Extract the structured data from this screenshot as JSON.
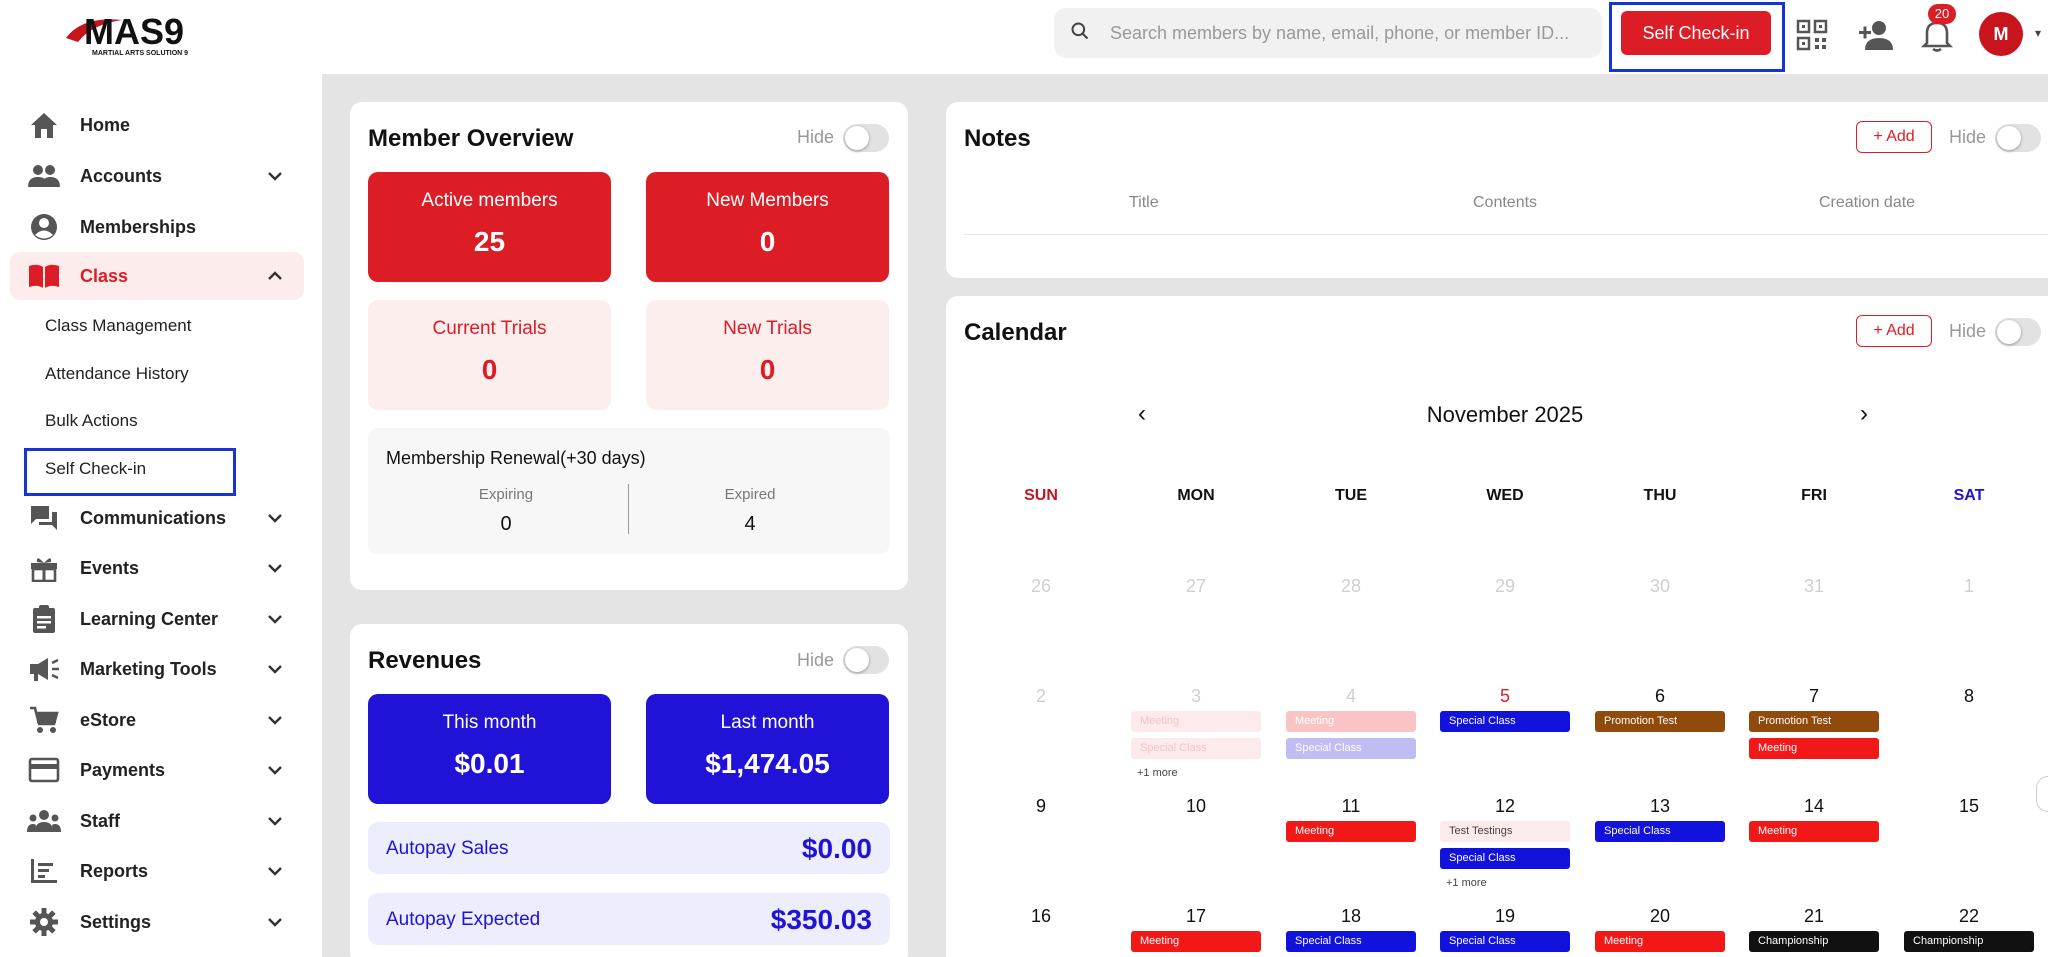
{
  "app": {
    "logo_text": "MAS9",
    "logo_sub": "MARTIAL ARTS SOLUTION 9"
  },
  "header": {
    "search_placeholder": "Search members by name, email, phone, or member ID...",
    "self_checkin_label": "Self Check-in",
    "notification_count": "20",
    "avatar_initials": "M"
  },
  "sidebar": {
    "items": [
      {
        "label": "Home",
        "icon": "home-icon"
      },
      {
        "label": "Accounts",
        "icon": "accounts-icon"
      },
      {
        "label": "Memberships",
        "icon": "user-circle-icon"
      },
      {
        "label": "Class",
        "icon": "book-icon"
      },
      {
        "label": "Communications",
        "icon": "chat-icon"
      },
      {
        "label": "Events",
        "icon": "gift-icon"
      },
      {
        "label": "Learning Center",
        "icon": "clipboard-icon"
      },
      {
        "label": "Marketing Tools",
        "icon": "megaphone-icon"
      },
      {
        "label": "eStore",
        "icon": "cart-icon"
      },
      {
        "label": "Payments",
        "icon": "credit-card-icon"
      },
      {
        "label": "Staff",
        "icon": "group-icon"
      },
      {
        "label": "Reports",
        "icon": "chart-icon"
      },
      {
        "label": "Settings",
        "icon": "gear-icon"
      }
    ],
    "class_sub": [
      "Class Management",
      "Attendance History",
      "Bulk Actions",
      "Self Check-in"
    ]
  },
  "member_overview": {
    "title": "Member Overview",
    "hide_label": "Hide",
    "active_members": {
      "label": "Active members",
      "value": "25"
    },
    "new_members": {
      "label": "New Members",
      "value": "0"
    },
    "current_trials": {
      "label": "Current Trials",
      "value": "0"
    },
    "new_trials": {
      "label": "New Trials",
      "value": "0"
    },
    "renewal": {
      "title": "Membership Renewal(+30 days)",
      "expiring_label": "Expiring",
      "expiring_value": "0",
      "expired_label": "Expired",
      "expired_value": "4"
    }
  },
  "revenues": {
    "title": "Revenues",
    "hide_label": "Hide",
    "this_month": {
      "label": "This month",
      "value": "$0.01"
    },
    "last_month": {
      "label": "Last month",
      "value": "$1,474.05"
    },
    "autopay_sales": {
      "label": "Autopay Sales",
      "value": "$0.00"
    },
    "autopay_expected": {
      "label": "Autopay Expected",
      "value": "$350.03"
    }
  },
  "notes": {
    "title": "Notes",
    "add_label": "+ Add",
    "hide_label": "Hide",
    "columns": [
      "Title",
      "Contents",
      "Creation date"
    ]
  },
  "calendar": {
    "title": "Calendar",
    "add_label": "+ Add",
    "hide_label": "Hide",
    "month": "November 2025",
    "prev": "‹",
    "next": "›",
    "weekdays": [
      "SUN",
      "MON",
      "TUE",
      "WED",
      "THU",
      "FRI",
      "SAT"
    ],
    "weeks": [
      [
        "26",
        "27",
        "28",
        "29",
        "30",
        "31",
        "1"
      ],
      [
        "2",
        "3",
        "4",
        "5",
        "6",
        "7",
        "8"
      ],
      [
        "9",
        "10",
        "11",
        "12",
        "13",
        "14",
        "15"
      ],
      [
        "16",
        "17",
        "18",
        "19",
        "20",
        "21",
        "22"
      ]
    ],
    "events": [
      {
        "week": 1,
        "day": 1,
        "slot": 0,
        "label": "Meeting",
        "color": "#fdeaea",
        "text_color": "#f2c4c4"
      },
      {
        "week": 1,
        "day": 1,
        "slot": 1,
        "label": "Special Class",
        "color": "#fdeaea",
        "text_color": "#f2c4c4"
      },
      {
        "week": 1,
        "day": 2,
        "slot": 0,
        "label": "Meeting",
        "color": "#fbc4c4",
        "text_color": "#ffffff"
      },
      {
        "week": 1,
        "day": 2,
        "slot": 1,
        "label": "Special Class",
        "color": "#c0bdf3",
        "text_color": "#ffffff"
      },
      {
        "week": 1,
        "day": 3,
        "slot": 0,
        "label": "Special Class",
        "color": "#1212dd",
        "text_color": "#ffffff"
      },
      {
        "week": 1,
        "day": 4,
        "slot": 0,
        "label": "Promotion Test",
        "color": "#8f4a0c",
        "text_color": "#ffffff"
      },
      {
        "week": 1,
        "day": 5,
        "slot": 0,
        "label": "Promotion Test",
        "color": "#8f4a0c",
        "text_color": "#ffffff"
      },
      {
        "week": 1,
        "day": 5,
        "slot": 1,
        "label": "Meeting",
        "color": "#f21818",
        "text_color": "#ffffff"
      },
      {
        "week": 2,
        "day": 2,
        "slot": 0,
        "label": "Meeting",
        "color": "#f21818",
        "text_color": "#ffffff"
      },
      {
        "week": 2,
        "day": 3,
        "slot": 0,
        "label": "Test Testings",
        "color": "#fdeaea",
        "text_color": "#444444"
      },
      {
        "week": 2,
        "day": 3,
        "slot": 1,
        "label": "Special Class",
        "color": "#1212dd",
        "text_color": "#ffffff"
      },
      {
        "week": 2,
        "day": 4,
        "slot": 0,
        "label": "Special Class",
        "color": "#1212dd",
        "text_color": "#ffffff"
      },
      {
        "week": 2,
        "day": 5,
        "slot": 0,
        "label": "Meeting",
        "color": "#f21818",
        "text_color": "#ffffff"
      },
      {
        "week": 3,
        "day": 1,
        "slot": 0,
        "label": "Meeting",
        "color": "#f21818",
        "text_color": "#ffffff"
      },
      {
        "week": 3,
        "day": 2,
        "slot": 0,
        "label": "Special Class",
        "color": "#1212dd",
        "text_color": "#ffffff"
      },
      {
        "week": 3,
        "day": 3,
        "slot": 0,
        "label": "Special Class",
        "color": "#1212dd",
        "text_color": "#ffffff"
      },
      {
        "week": 3,
        "day": 4,
        "slot": 0,
        "label": "Meeting",
        "color": "#f21818",
        "text_color": "#ffffff"
      },
      {
        "week": 3,
        "day": 5,
        "slot": 0,
        "label": "Championship",
        "color": "#111111",
        "text_color": "#ffffff"
      },
      {
        "week": 3,
        "day": 6,
        "slot": 0,
        "label": "Championship",
        "color": "#111111",
        "text_color": "#ffffff"
      }
    ],
    "more": [
      {
        "week": 1,
        "day": 1,
        "label": "+1 more"
      },
      {
        "week": 2,
        "day": 3,
        "label": "+1 more"
      }
    ]
  }
}
